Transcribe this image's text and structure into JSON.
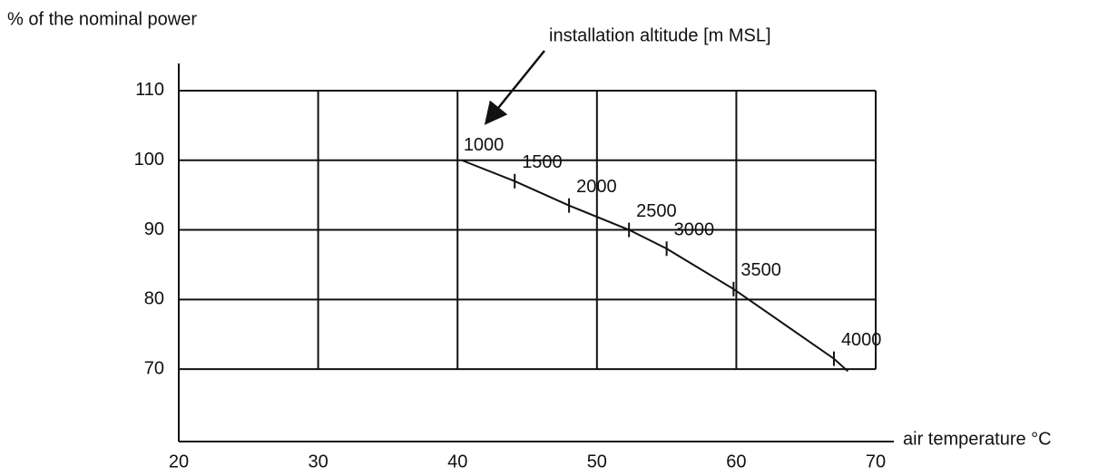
{
  "chart_data": {
    "type": "line",
    "ylabel": "% of the nominal power",
    "xlabel": "air temperature °C",
    "annotation": "installation altitude [m MSL]",
    "xlim": [
      20,
      71.3
    ],
    "ylim": [
      59.6,
      113.9
    ],
    "xticks": [
      20,
      30,
      40,
      50,
      60,
      70
    ],
    "yticks": [
      70,
      80,
      90,
      100,
      110
    ],
    "grid": true,
    "series": [
      {
        "color": "#111111",
        "x": [
          40.3,
          44.1,
          48,
          52.3,
          55,
          59.8,
          67,
          68
        ],
        "values": [
          100,
          97,
          93.5,
          90,
          87.3,
          81.5,
          71.5,
          69.7
        ],
        "altitudes": [
          1000,
          1500,
          2000,
          2500,
          3000,
          3500,
          4000,
          null
        ]
      }
    ]
  }
}
